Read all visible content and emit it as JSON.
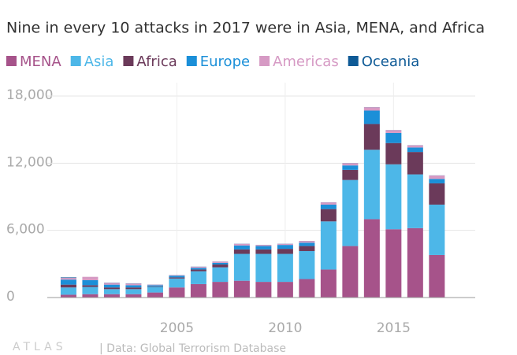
{
  "chart_data": {
    "type": "stacked-bar",
    "title": "Nine in every 10 attacks in 2017 were in Asia, MENA, and Africa",
    "x": [
      2000,
      2001,
      2002,
      2003,
      2004,
      2005,
      2006,
      2007,
      2008,
      2009,
      2010,
      2011,
      2012,
      2013,
      2014,
      2015,
      2016,
      2017
    ],
    "series": [
      {
        "name": "MENA",
        "color": "#a6538a",
        "values": [
          250,
          300,
          300,
          300,
          450,
          900,
          1200,
          1400,
          1500,
          1400,
          1400,
          1650,
          2500,
          4600,
          7000,
          6100,
          6200,
          3800
        ]
      },
      {
        "name": "Asia",
        "color": "#4db7e8",
        "values": [
          650,
          650,
          450,
          450,
          500,
          800,
          1150,
          1300,
          2400,
          2500,
          2500,
          2500,
          4300,
          5900,
          6200,
          5800,
          4800,
          4500
        ]
      },
      {
        "name": "Africa",
        "color": "#6b3a5a",
        "values": [
          250,
          150,
          150,
          150,
          50,
          100,
          150,
          250,
          400,
          400,
          450,
          450,
          1100,
          900,
          2300,
          1900,
          2000,
          1900
        ]
      },
      {
        "name": "Europe",
        "color": "#1b8fd8",
        "values": [
          450,
          450,
          250,
          200,
          100,
          150,
          150,
          150,
          350,
          300,
          350,
          300,
          400,
          400,
          1200,
          900,
          400,
          400
        ]
      },
      {
        "name": "Americas",
        "color": "#d69ac4",
        "values": [
          150,
          300,
          150,
          150,
          50,
          50,
          100,
          100,
          150,
          100,
          100,
          150,
          200,
          200,
          300,
          250,
          200,
          300
        ]
      },
      {
        "name": "Oceania",
        "color": "#0e5a96",
        "values": [
          50,
          0,
          20,
          20,
          10,
          10,
          10,
          10,
          10,
          10,
          10,
          10,
          10,
          10,
          10,
          10,
          10,
          10
        ]
      }
    ],
    "xlim": [
      1999.02,
      2018.77
    ],
    "xticks": [
      2005,
      2010,
      2015
    ],
    "ylim": [
      0,
      18000
    ],
    "yticks": [
      0,
      {
        "value": 6000,
        "label": "6,000"
      },
      {
        "value": 12000,
        "label": "12,000"
      },
      {
        "value": 18000,
        "label": "18,000"
      }
    ],
    "grid": true,
    "logo": "ATLAS",
    "source": "| Data: Global Terrorism Database"
  }
}
